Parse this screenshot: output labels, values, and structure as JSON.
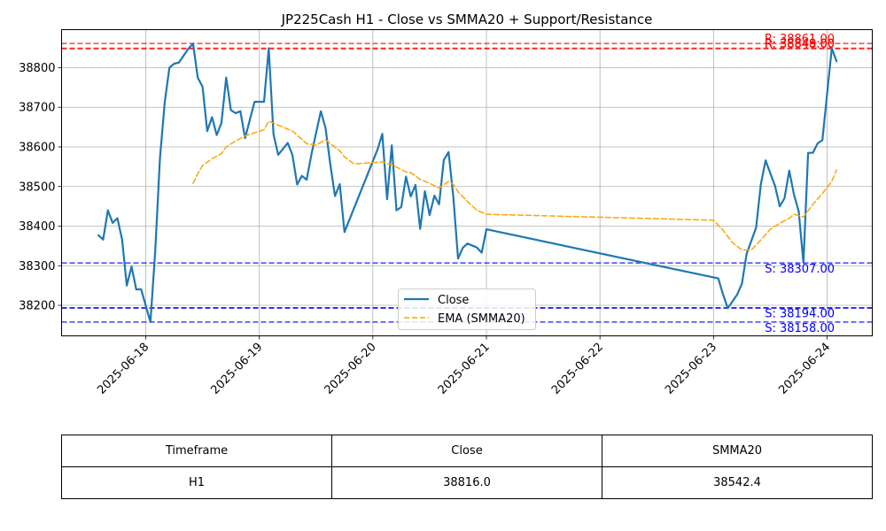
{
  "chart_data": {
    "type": "line",
    "title": "JP225Cash H1 - Close vs SMMA20 + Support/Resistance",
    "xlabel": "",
    "ylabel": "",
    "x_ticks": [
      "2025-06-18",
      "2025-06-19",
      "2025-06-20",
      "2025-06-21",
      "2025-06-22",
      "2025-06-23",
      "2025-06-24"
    ],
    "y_ticks": [
      38200,
      38300,
      38400,
      38500,
      38600,
      38700,
      38800
    ],
    "ylim": [
      38123,
      38896
    ],
    "grid": true,
    "legend": {
      "placement": "lower-center",
      "entries": [
        "Close",
        "EMA (SMMA20)"
      ]
    },
    "series": [
      {
        "name": "Close",
        "color": "#1f77b4",
        "style": "solid",
        "points": [
          [
            "2025-06-17T14:00",
            38377
          ],
          [
            "2025-06-17T15:00",
            38366
          ],
          [
            "2025-06-17T16:00",
            38440
          ],
          [
            "2025-06-17T17:00",
            38408
          ],
          [
            "2025-06-17T18:00",
            38420
          ],
          [
            "2025-06-17T19:00",
            38366
          ],
          [
            "2025-06-17T20:00",
            38250
          ],
          [
            "2025-06-17T21:00",
            38298
          ],
          [
            "2025-06-17T22:00",
            38240
          ],
          [
            "2025-06-17T23:00",
            38241
          ],
          [
            "2025-06-18T01:00",
            38158
          ],
          [
            "2025-06-18T02:00",
            38337
          ],
          [
            "2025-06-18T03:00",
            38570
          ],
          [
            "2025-06-18T04:00",
            38712
          ],
          [
            "2025-06-18T05:00",
            38800
          ],
          [
            "2025-06-18T06:00",
            38810
          ],
          [
            "2025-06-18T07:00",
            38813
          ],
          [
            "2025-06-18T09:00",
            38848
          ],
          [
            "2025-06-18T10:00",
            38861
          ],
          [
            "2025-06-18T11:00",
            38775
          ],
          [
            "2025-06-18T12:00",
            38752
          ],
          [
            "2025-06-18T13:00",
            38640
          ],
          [
            "2025-06-18T14:00",
            38675
          ],
          [
            "2025-06-18T15:00",
            38630
          ],
          [
            "2025-06-18T16:00",
            38660
          ],
          [
            "2025-06-18T17:00",
            38775
          ],
          [
            "2025-06-18T18:00",
            38693
          ],
          [
            "2025-06-18T19:00",
            38685
          ],
          [
            "2025-06-18T20:00",
            38690
          ],
          [
            "2025-06-18T21:00",
            38622
          ],
          [
            "2025-06-18T23:00",
            38714
          ],
          [
            "2025-06-19T01:00",
            38714
          ],
          [
            "2025-06-19T02:00",
            38849
          ],
          [
            "2025-06-19T03:00",
            38632
          ],
          [
            "2025-06-19T04:00",
            38580
          ],
          [
            "2025-06-19T06:00",
            38610
          ],
          [
            "2025-06-19T07:00",
            38580
          ],
          [
            "2025-06-19T08:00",
            38505
          ],
          [
            "2025-06-19T09:00",
            38527
          ],
          [
            "2025-06-19T10:00",
            38517
          ],
          [
            "2025-06-19T11:00",
            38580
          ],
          [
            "2025-06-19T13:00",
            38690
          ],
          [
            "2025-06-19T14:00",
            38648
          ],
          [
            "2025-06-19T15:00",
            38556
          ],
          [
            "2025-06-19T16:00",
            38476
          ],
          [
            "2025-06-19T17:00",
            38506
          ],
          [
            "2025-06-19T18:00",
            38385
          ],
          [
            "2025-06-20T01:00",
            38594
          ],
          [
            "2025-06-20T02:00",
            38633
          ],
          [
            "2025-06-20T03:00",
            38468
          ],
          [
            "2025-06-20T04:00",
            38604
          ],
          [
            "2025-06-20T05:00",
            38440
          ],
          [
            "2025-06-20T06:00",
            38448
          ],
          [
            "2025-06-20T07:00",
            38525
          ],
          [
            "2025-06-20T08:00",
            38475
          ],
          [
            "2025-06-20T09:00",
            38504
          ],
          [
            "2025-06-20T10:00",
            38393
          ],
          [
            "2025-06-20T11:00",
            38488
          ],
          [
            "2025-06-20T12:00",
            38428
          ],
          [
            "2025-06-20T13:00",
            38477
          ],
          [
            "2025-06-20T14:00",
            38455
          ],
          [
            "2025-06-20T15:00",
            38567
          ],
          [
            "2025-06-20T16:00",
            38587
          ],
          [
            "2025-06-20T17:00",
            38475
          ],
          [
            "2025-06-20T18:00",
            38318
          ],
          [
            "2025-06-20T19:00",
            38345
          ],
          [
            "2025-06-20T20:00",
            38356
          ],
          [
            "2025-06-20T22:00",
            38346
          ],
          [
            "2025-06-20T23:00",
            38333
          ],
          [
            "2025-06-21T00:00",
            38392
          ],
          [
            "2025-06-23T01:00",
            38268
          ],
          [
            "2025-06-23T02:00",
            38228
          ],
          [
            "2025-06-23T03:00",
            38193
          ],
          [
            "2025-06-23T05:00",
            38227
          ],
          [
            "2025-06-23T06:00",
            38255
          ],
          [
            "2025-06-23T07:00",
            38330
          ],
          [
            "2025-06-23T09:00",
            38396
          ],
          [
            "2025-06-23T10:00",
            38505
          ],
          [
            "2025-06-23T11:00",
            38566
          ],
          [
            "2025-06-23T13:00",
            38501
          ],
          [
            "2025-06-23T14:00",
            38450
          ],
          [
            "2025-06-23T15:00",
            38470
          ],
          [
            "2025-06-23T16:00",
            38540
          ],
          [
            "2025-06-23T17:00",
            38480
          ],
          [
            "2025-06-23T18:00",
            38437
          ],
          [
            "2025-06-23T19:00",
            38307
          ],
          [
            "2025-06-23T20:00",
            38585
          ],
          [
            "2025-06-23T21:00",
            38585
          ],
          [
            "2025-06-23T22:00",
            38609
          ],
          [
            "2025-06-23T23:00",
            38617
          ],
          [
            "2025-06-24T01:00",
            38849
          ],
          [
            "2025-06-24T02:00",
            38816
          ]
        ]
      },
      {
        "name": "EMA (SMMA20)",
        "color": "#ffa500",
        "style": "dashed",
        "points": [
          [
            "2025-06-18T10:00",
            38508
          ],
          [
            "2025-06-18T11:00",
            38532
          ],
          [
            "2025-06-18T12:00",
            38553
          ],
          [
            "2025-06-18T14:00",
            38570
          ],
          [
            "2025-06-18T16:00",
            38583
          ],
          [
            "2025-06-18T17:00",
            38600
          ],
          [
            "2025-06-18T19:00",
            38615
          ],
          [
            "2025-06-18T21:00",
            38628
          ],
          [
            "2025-06-19T01:00",
            38643
          ],
          [
            "2025-06-19T02:00",
            38665
          ],
          [
            "2025-06-19T04:00",
            38655
          ],
          [
            "2025-06-19T07:00",
            38640
          ],
          [
            "2025-06-19T08:00",
            38630
          ],
          [
            "2025-06-19T10:00",
            38608
          ],
          [
            "2025-06-19T12:00",
            38605
          ],
          [
            "2025-06-19T14:00",
            38618
          ],
          [
            "2025-06-19T17:00",
            38590
          ],
          [
            "2025-06-19T18:00",
            38575
          ],
          [
            "2025-06-19T20:00",
            38557
          ],
          [
            "2025-06-20T02:00",
            38562
          ],
          [
            "2025-06-20T04:00",
            38555
          ],
          [
            "2025-06-20T07:00",
            38537
          ],
          [
            "2025-06-20T08:00",
            38535
          ],
          [
            "2025-06-20T10:00",
            38518
          ],
          [
            "2025-06-20T12:00",
            38508
          ],
          [
            "2025-06-20T14:00",
            38496
          ],
          [
            "2025-06-20T16:00",
            38513
          ],
          [
            "2025-06-20T17:00",
            38505
          ],
          [
            "2025-06-20T18:00",
            38487
          ],
          [
            "2025-06-20T20:00",
            38462
          ],
          [
            "2025-06-20T22:00",
            38440
          ],
          [
            "2025-06-21T00:00",
            38430
          ],
          [
            "2025-06-23T00:00",
            38415
          ],
          [
            "2025-06-23T02:00",
            38390
          ],
          [
            "2025-06-23T04:00",
            38358
          ],
          [
            "2025-06-23T06:00",
            38340
          ],
          [
            "2025-06-23T08:00",
            38340
          ],
          [
            "2025-06-23T10:00",
            38365
          ],
          [
            "2025-06-23T12:00",
            38392
          ],
          [
            "2025-06-23T14:00",
            38407
          ],
          [
            "2025-06-23T16:00",
            38420
          ],
          [
            "2025-06-23T17:00",
            38430
          ],
          [
            "2025-06-23T19:00",
            38423
          ],
          [
            "2025-06-23T21:00",
            38455
          ],
          [
            "2025-06-23T23:00",
            38482
          ],
          [
            "2025-06-24T01:00",
            38513
          ],
          [
            "2025-06-24T02:00",
            38542
          ]
        ]
      }
    ],
    "levels": [
      {
        "kind": "resistance",
        "value": 38861,
        "label": "R: 38861.00",
        "color": "#ff0000"
      },
      {
        "kind": "resistance",
        "value": 38849,
        "label": "R: 38849.00",
        "color": "#ff0000"
      },
      {
        "kind": "resistance",
        "value": 38848,
        "label": "R: 38848.00",
        "color": "#ff0000"
      },
      {
        "kind": "support",
        "value": 38307,
        "label": "S: 38307.00",
        "color": "#0000ff"
      },
      {
        "kind": "support",
        "value": 38194,
        "label": "S: 38194.00",
        "color": "#0000ff"
      },
      {
        "kind": "support",
        "value": 38193,
        "label": "",
        "color": "#0000ff"
      },
      {
        "kind": "support",
        "value": 38158,
        "label": "S: 38158.00",
        "color": "#0000ff"
      }
    ]
  },
  "table": {
    "headers": [
      "Timeframe",
      "Close",
      "SMMA20"
    ],
    "row": [
      "H1",
      "38816.0",
      "38542.4"
    ]
  }
}
